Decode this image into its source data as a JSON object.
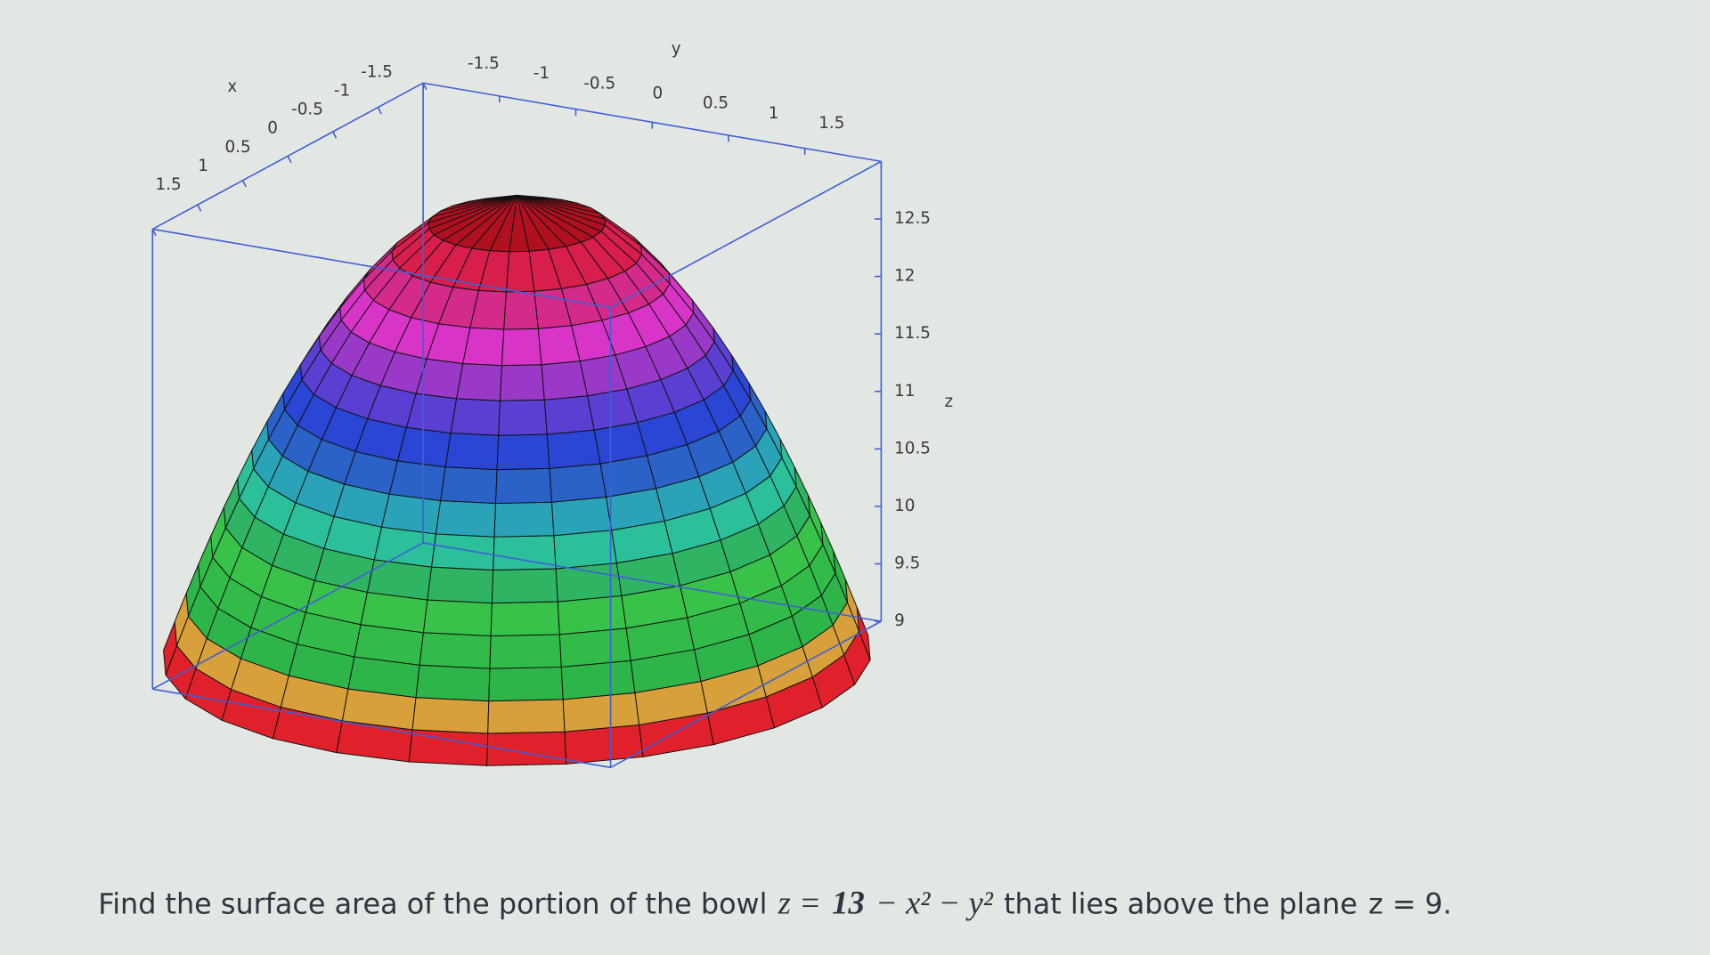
{
  "plot": {
    "x_label": "x",
    "y_label": "y",
    "z_label": "z",
    "x_ticks": [
      1.5,
      1,
      0.5,
      0,
      -0.5,
      -1,
      -1.5
    ],
    "y_ticks": [
      -1.5,
      -1,
      -0.5,
      0,
      0.5,
      1,
      1.5
    ],
    "z_ticks": [
      9,
      9.5,
      10,
      10.5,
      11,
      11.5,
      12,
      12.5
    ]
  },
  "question": {
    "before": "Find the surface area of the portion of the bowl",
    "eq_lhs": "z =",
    "eq_constant": 13,
    "eq_rest": "− x² − y²",
    "middle": "that lies above the plane",
    "plane_lhs": "z =",
    "plane_value": 9,
    "end": "."
  }
}
